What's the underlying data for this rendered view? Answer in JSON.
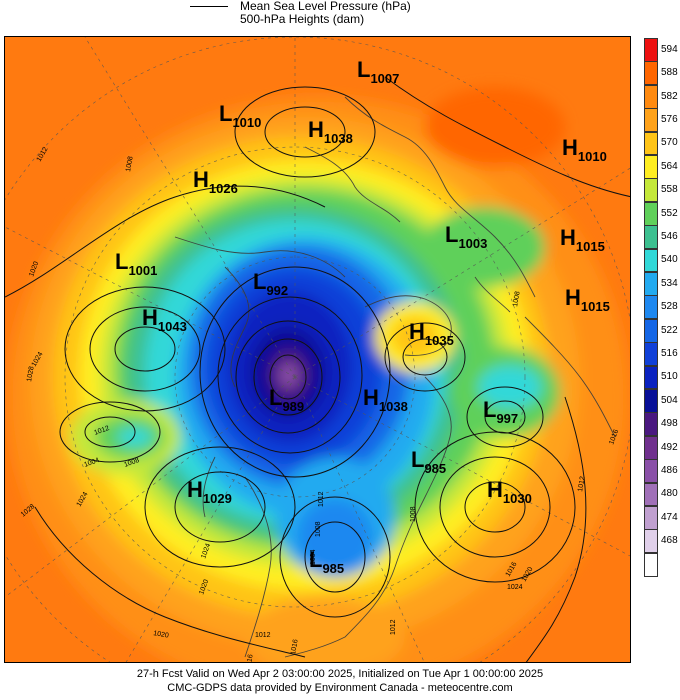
{
  "legend": {
    "line1": "Mean Sea Level Pressure (hPa)",
    "line2": "500-hPa Heights (dam)"
  },
  "footer": {
    "line1": "27-h Fcst Valid on Wed Apr  2 03:00:00 2025, Initialized on Tue Apr  1 00:00:00 2025",
    "line2": "CMC-GDPS data provided by Environment Canada - meteocentre.com"
  },
  "colorbar": [
    {
      "label": "594",
      "color": "#ee1111"
    },
    {
      "label": "588",
      "color": "#ff6600"
    },
    {
      "label": "582",
      "color": "#ff8a10"
    },
    {
      "label": "576",
      "color": "#ffa21a"
    },
    {
      "label": "570",
      "color": "#ffc418"
    },
    {
      "label": "564",
      "color": "#ffee22"
    },
    {
      "label": "558",
      "color": "#c4e83a"
    },
    {
      "label": "552",
      "color": "#5fd05a"
    },
    {
      "label": "546",
      "color": "#3cc090"
    },
    {
      "label": "540",
      "color": "#30d8d8"
    },
    {
      "label": "534",
      "color": "#22aaf0"
    },
    {
      "label": "528",
      "color": "#1e88f0"
    },
    {
      "label": "522",
      "color": "#1466e6"
    },
    {
      "label": "516",
      "color": "#1040d8"
    },
    {
      "label": "510",
      "color": "#0a22c0"
    },
    {
      "label": "504",
      "color": "#081098"
    },
    {
      "label": "498",
      "color": "#4a1880"
    },
    {
      "label": "492",
      "color": "#70308e"
    },
    {
      "label": "486",
      "color": "#8a50a8"
    },
    {
      "label": "480",
      "color": "#a070b8"
    },
    {
      "label": "474",
      "color": "#c0a0d0"
    },
    {
      "label": "468",
      "color": "#e0d0ea"
    },
    {
      "label": "",
      "color": "#ffffff"
    }
  ],
  "systems": [
    {
      "type": "L",
      "value": "1007"
    },
    {
      "type": "L",
      "value": "1010"
    },
    {
      "type": "H",
      "value": "1038"
    },
    {
      "type": "H",
      "value": "1010"
    },
    {
      "type": "H",
      "value": "1026"
    },
    {
      "type": "L",
      "value": "1003"
    },
    {
      "type": "H",
      "value": "1015"
    },
    {
      "type": "L",
      "value": "1001"
    },
    {
      "type": "L",
      "value": "992"
    },
    {
      "type": "H",
      "value": "1015"
    },
    {
      "type": "H",
      "value": "1043"
    },
    {
      "type": "H",
      "value": "1035"
    },
    {
      "type": "L",
      "value": "989"
    },
    {
      "type": "H",
      "value": "1038"
    },
    {
      "type": "L",
      "value": "997"
    },
    {
      "type": "L",
      "value": "985"
    },
    {
      "type": "H",
      "value": "1030"
    },
    {
      "type": "H",
      "value": "1029"
    },
    {
      "type": "L",
      "value": "985"
    }
  ],
  "contour_labels": [
    "1012",
    "1008",
    "1020",
    "1024",
    "1028",
    "1012",
    "1004",
    "1008",
    "1024",
    "1028",
    "1020",
    "1012",
    "1016",
    "1020",
    "1024",
    "1016",
    "1016",
    "1012",
    "1008",
    "1004",
    "1012",
    "1008",
    "1016",
    "1020",
    "1024",
    "1016",
    "1012",
    "1008"
  ]
}
